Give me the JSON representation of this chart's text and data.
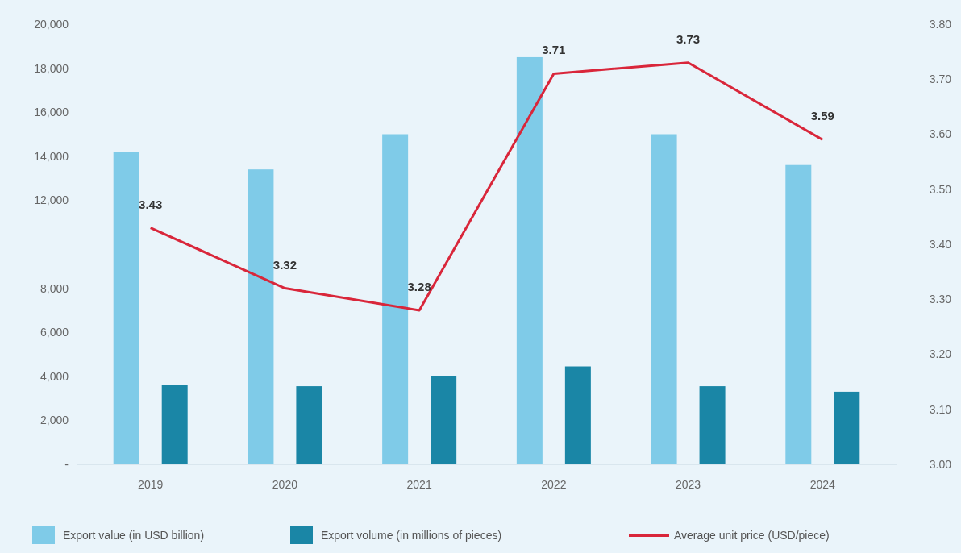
{
  "chart_data": {
    "type": "bar",
    "categories": [
      "2019",
      "2020",
      "2021",
      "2022",
      "2023",
      "2024"
    ],
    "series": [
      {
        "name": "Export value (in USD billion)",
        "color": "#7fcbe8",
        "values": [
          14200,
          13400,
          15000,
          18500,
          15000,
          13600
        ]
      },
      {
        "name": "Export volume (in millions of pieces)",
        "color": "#1a86a6",
        "values": [
          3600,
          3550,
          4000,
          4450,
          3550,
          3300
        ]
      },
      {
        "name": "Average unit price (USD/piece)",
        "type": "line",
        "axis": "y2",
        "color": "#d9263a",
        "values": [
          3.43,
          3.32,
          3.28,
          3.71,
          3.73,
          3.59
        ],
        "data_labels": true
      }
    ],
    "ylim": [
      0,
      20000
    ],
    "yticks": [
      {
        "value": 0,
        "label": "-"
      },
      {
        "value": 2000,
        "label": "2,000"
      },
      {
        "value": 4000,
        "label": "4,000"
      },
      {
        "value": 6000,
        "label": "6,000"
      },
      {
        "value": 8000,
        "label": "8,000"
      },
      {
        "value": 12000,
        "label": "12,000"
      },
      {
        "value": 14000,
        "label": "14,000"
      },
      {
        "value": 16000,
        "label": "16,000"
      },
      {
        "value": 18000,
        "label": "18,000"
      },
      {
        "value": 20000,
        "label": "20,000"
      }
    ],
    "y2lim": [
      3.0,
      3.8
    ],
    "y2ticks": [
      {
        "value": 3.0,
        "label": "3.00"
      },
      {
        "value": 3.1,
        "label": "3.10"
      },
      {
        "value": 3.2,
        "label": "3.20"
      },
      {
        "value": 3.3,
        "label": "3.30"
      },
      {
        "value": 3.4,
        "label": "3.40"
      },
      {
        "value": 3.5,
        "label": "3.50"
      },
      {
        "value": 3.6,
        "label": "3.60"
      },
      {
        "value": 3.7,
        "label": "3.70"
      },
      {
        "value": 3.8,
        "label": "3.80"
      }
    ],
    "legend": "bottom",
    "grid": false,
    "marker": "none",
    "line_style": "solid"
  }
}
